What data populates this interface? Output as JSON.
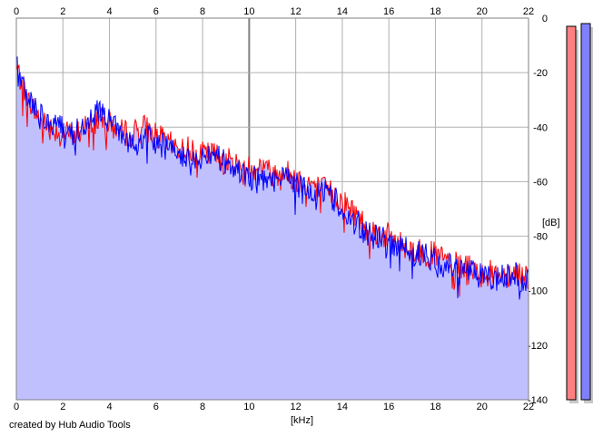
{
  "credit": "created by Hub Audio Tools",
  "chart_data": {
    "type": "area",
    "xlabel": "[kHz]",
    "ylabel": "[dB]",
    "xlim": [
      0,
      22
    ],
    "ylim": [
      -140,
      0
    ],
    "x_ticks": [
      0,
      2,
      4,
      6,
      8,
      10,
      12,
      14,
      16,
      18,
      20,
      22
    ],
    "y_ticks": [
      0,
      -20,
      -40,
      -60,
      -80,
      -100,
      -120,
      -140
    ],
    "grid": true,
    "fill_color": "#c0c0ff",
    "series": [
      {
        "color": "#ff0000",
        "x": [
          0,
          0.5,
          1,
          1.5,
          2,
          2.5,
          3,
          3.5,
          4,
          4.5,
          5,
          5.5,
          6,
          6.5,
          7,
          7.5,
          8,
          8.5,
          9,
          9.5,
          10,
          10.5,
          11,
          11.5,
          12,
          12.5,
          13,
          13.5,
          14,
          14.5,
          15,
          15.5,
          16,
          16.5,
          17,
          17.5,
          18,
          18.5,
          19,
          19.5,
          20,
          20.5,
          21,
          21.5,
          22
        ],
        "values": [
          -18,
          -30,
          -37,
          -40,
          -42,
          -43,
          -40,
          -37,
          -39,
          -42,
          -42,
          -40,
          -43,
          -46,
          -48,
          -48,
          -50,
          -50,
          -52,
          -54,
          -55,
          -54,
          -57,
          -56,
          -59,
          -60,
          -62,
          -64,
          -67,
          -71,
          -76,
          -79,
          -80,
          -83,
          -85,
          -86,
          -87,
          -89,
          -91,
          -92,
          -93,
          -94,
          -94,
          -93,
          -95
        ]
      },
      {
        "color": "#0000ff",
        "x": [
          0,
          0.5,
          1,
          1.5,
          2,
          2.5,
          3,
          3.5,
          4,
          4.5,
          5,
          5.5,
          6,
          6.5,
          7,
          7.5,
          8,
          8.5,
          9,
          9.5,
          10,
          10.5,
          11,
          11.5,
          12,
          12.5,
          13,
          13.5,
          14,
          14.5,
          15,
          15.5,
          16,
          16.5,
          17,
          17.5,
          18,
          18.5,
          19,
          19.5,
          20,
          20.5,
          21,
          21.5,
          22
        ],
        "values": [
          -17,
          -29,
          -36,
          -39,
          -41,
          -42,
          -39,
          -34,
          -38,
          -43,
          -47,
          -44,
          -45,
          -48,
          -50,
          -50,
          -51,
          -51,
          -53,
          -55,
          -58,
          -60,
          -60,
          -58,
          -61,
          -62,
          -63,
          -65,
          -69,
          -73,
          -79,
          -81,
          -82,
          -84,
          -86,
          -87,
          -89,
          -91,
          -92,
          -93,
          -95,
          -96,
          -95,
          -94,
          -96
        ]
      }
    ],
    "level_meters": [
      {
        "color": "#ff8080",
        "value": -3
      },
      {
        "color": "#8080ff",
        "value": -2
      }
    ]
  }
}
